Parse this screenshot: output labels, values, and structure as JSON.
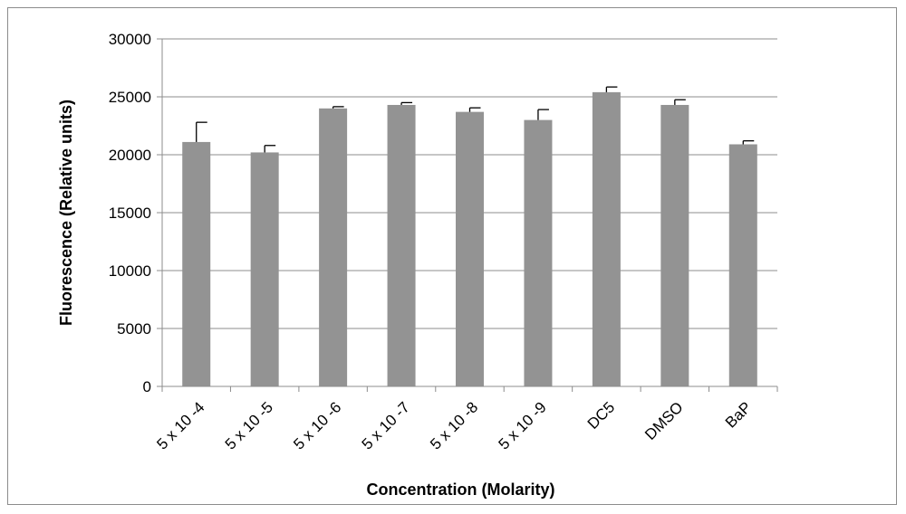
{
  "chart_data": {
    "type": "bar",
    "title": "",
    "xlabel": "Concentration (Molarity)",
    "ylabel": "Fluorescence (Relative units)",
    "ylim": [
      0,
      30000
    ],
    "yticks": [
      0,
      5000,
      10000,
      15000,
      20000,
      25000,
      30000
    ],
    "grid": true,
    "legend": "none",
    "categories": [
      "5 x 10 -4",
      "5 x 10 -5",
      "5 x 10 -6",
      "5 x 10 -7",
      "5 x 10 -8",
      "5 x 10 -9",
      "DC5",
      "DMSO",
      "BaP"
    ],
    "series": [
      {
        "values": [
          21100,
          20200,
          24000,
          24300,
          23700,
          23000,
          25400,
          24300,
          20900
        ],
        "error_upper": [
          1700,
          600,
          150,
          200,
          350,
          900,
          450,
          450,
          300
        ],
        "color": "#939393"
      }
    ]
  }
}
